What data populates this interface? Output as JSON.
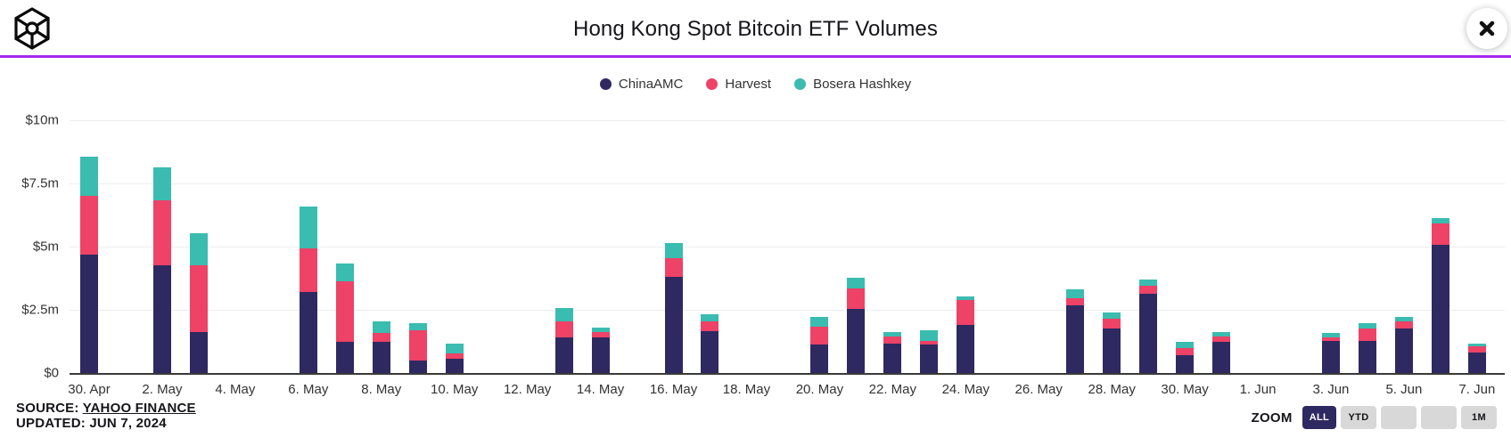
{
  "header": {
    "logo_name": "blockworks-cube-logo",
    "close_glyph": "✕"
  },
  "accent": {
    "divider_color": "#a428f0",
    "gridline_color": "#ededed",
    "axis_color": "#3a3a3a"
  },
  "chart_data": {
    "type": "bar",
    "stacked": true,
    "title": "Hong Kong Spot Bitcoin ETF Volumes",
    "unit": "USD millions",
    "ylim": [
      0,
      10
    ],
    "y_ticks": [
      {
        "label": "$0",
        "value": 0
      },
      {
        "label": "$2.5m",
        "value": 2.5
      },
      {
        "label": "$5m",
        "value": 5
      },
      {
        "label": "$7.5m",
        "value": 7.5
      },
      {
        "label": "$10m",
        "value": 10
      }
    ],
    "x_ticks": [
      "30. Apr",
      "2. May",
      "4. May",
      "6. May",
      "8. May",
      "10. May",
      "12. May",
      "14. May",
      "16. May",
      "18. May",
      "20. May",
      "22. May",
      "24. May",
      "26. May",
      "28. May",
      "30. May",
      "1. Jun",
      "3. Jun",
      "5. Jun",
      "7. Jun"
    ],
    "categories": [
      "30. Apr",
      "2. May",
      "3. May",
      "6. May",
      "7. May",
      "8. May",
      "9. May",
      "10. May",
      "13. May",
      "14. May",
      "16. May",
      "17. May",
      "20. May",
      "21. May",
      "22. May",
      "23. May",
      "24. May",
      "27. May",
      "28. May",
      "29. May",
      "30. May",
      "31. May",
      "3. Jun",
      "4. Jun",
      "5. Jun",
      "6. Jun",
      "7. Jun"
    ],
    "series": [
      {
        "name": "ChinaAMC",
        "color": "#2e2961",
        "values": [
          4.7,
          4.25,
          1.61,
          3.21,
          1.25,
          1.25,
          0.5,
          0.56,
          1.4,
          1.42,
          3.8,
          1.66,
          1.12,
          2.53,
          1.18,
          1.13,
          1.91,
          2.67,
          1.75,
          3.13,
          0.7,
          1.23,
          1.28,
          1.28,
          1.75,
          5.07,
          0.82
        ]
      },
      {
        "name": "Harvest",
        "color": "#ee4266",
        "values": [
          2.3,
          2.58,
          2.64,
          1.74,
          2.38,
          0.33,
          1.21,
          0.23,
          0.66,
          0.19,
          0.76,
          0.39,
          0.72,
          0.81,
          0.25,
          0.15,
          0.97,
          0.29,
          0.39,
          0.32,
          0.29,
          0.23,
          0.13,
          0.47,
          0.3,
          0.87,
          0.23
        ]
      },
      {
        "name": "Bosera Hashkey",
        "color": "#3abcb0",
        "values": [
          1.57,
          1.33,
          1.28,
          1.63,
          0.69,
          0.47,
          0.28,
          0.39,
          0.52,
          0.18,
          0.58,
          0.29,
          0.37,
          0.45,
          0.18,
          0.4,
          0.16,
          0.35,
          0.26,
          0.24,
          0.24,
          0.16,
          0.16,
          0.23,
          0.16,
          0.18,
          0.13
        ]
      }
    ],
    "legend_position": "top-center",
    "grid": "horizontal"
  },
  "footer": {
    "source_label": "SOURCE:",
    "source_link": "YAHOO FINANCE",
    "updated": "UPDATED: JUN 7, 2024",
    "zoom_label": "ZOOM",
    "zoom_buttons": [
      {
        "label": "ALL",
        "active": true
      },
      {
        "label": "YTD",
        "active": false
      },
      {
        "label": "",
        "active": false
      },
      {
        "label": "",
        "active": false
      },
      {
        "label": "1M",
        "active": false
      }
    ]
  }
}
